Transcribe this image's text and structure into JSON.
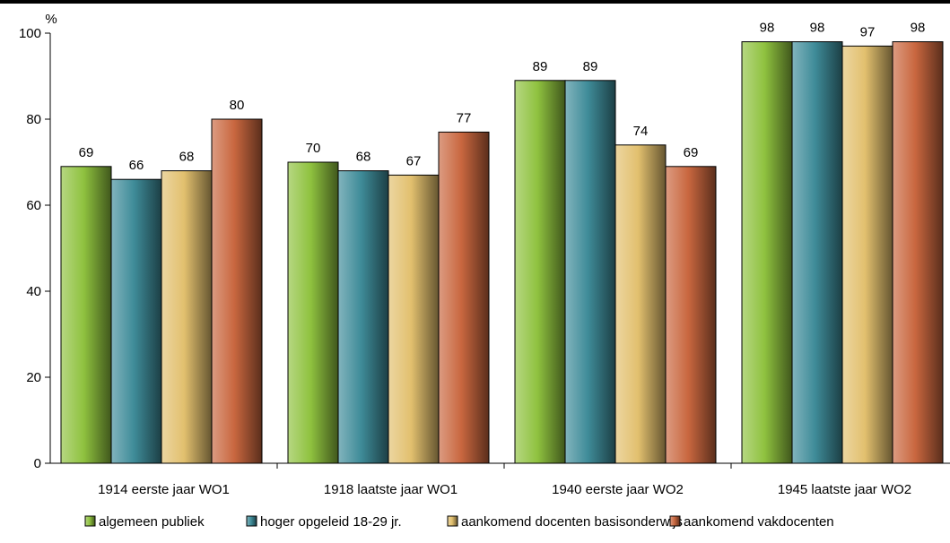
{
  "chart_data": {
    "type": "bar",
    "title": "",
    "xlabel": "",
    "ylabel": "%",
    "ylim": [
      0,
      100
    ],
    "yticks": [
      "0",
      "20",
      "40",
      "60",
      "80",
      "100"
    ],
    "categories": [
      "1914 eerste jaar WO1",
      "1918 laatste jaar WO1",
      "1940 eerste jaar WO2",
      "1945 laatste jaar WO2"
    ],
    "series": [
      {
        "name": "algemeen publiek",
        "values": [
          69,
          70,
          89,
          98
        ],
        "color": "#8fc23f"
      },
      {
        "name": "hoger opgeleid 18-29 jr.",
        "values": [
          66,
          68,
          89,
          98
        ],
        "color": "#3f8c99"
      },
      {
        "name": "aankomend docenten basisonderwijs",
        "values": [
          68,
          67,
          74,
          97
        ],
        "color": "#e2c06e"
      },
      {
        "name": "aankomend vakdocenten",
        "values": [
          80,
          77,
          69,
          98
        ],
        "color": "#c9673f"
      }
    ],
    "data_labels": true,
    "grid": false,
    "legend": "bottom"
  }
}
